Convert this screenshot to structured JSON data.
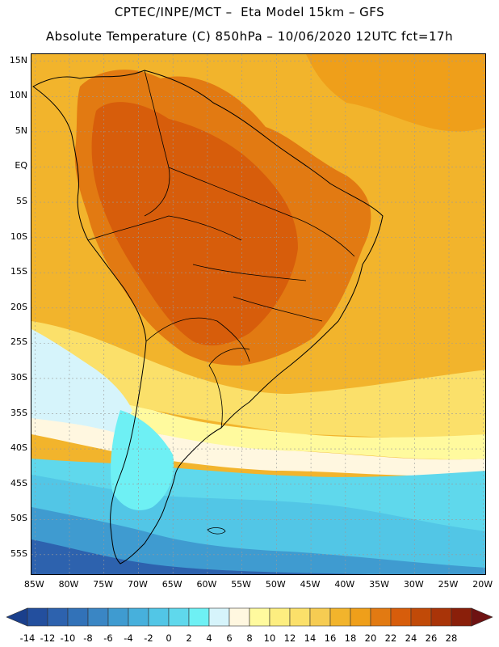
{
  "title_line1": "CPTEC/INPE/MCT –  Eta Model 15km – GFS",
  "title_line2": "Absolute Temperature (C) 850hPa – 10/06/2020 12UTC fct=17h",
  "map": {
    "lon_range": [
      -85.5,
      -19.5
    ],
    "lat_range": [
      -58,
      16
    ],
    "lat_labels": [
      {
        "lat": 15,
        "text": "15N"
      },
      {
        "lat": 10,
        "text": "10N"
      },
      {
        "lat": 5,
        "text": "5N"
      },
      {
        "lat": 0,
        "text": "EQ"
      },
      {
        "lat": -5,
        "text": "5S"
      },
      {
        "lat": -10,
        "text": "10S"
      },
      {
        "lat": -15,
        "text": "15S"
      },
      {
        "lat": -20,
        "text": "20S"
      },
      {
        "lat": -25,
        "text": "25S"
      },
      {
        "lat": -30,
        "text": "30S"
      },
      {
        "lat": -35,
        "text": "35S"
      },
      {
        "lat": -40,
        "text": "40S"
      },
      {
        "lat": -45,
        "text": "45S"
      },
      {
        "lat": -50,
        "text": "50S"
      },
      {
        "lat": -55,
        "text": "55S"
      }
    ],
    "lon_labels": [
      {
        "lon": -85,
        "text": "85W"
      },
      {
        "lon": -80,
        "text": "80W"
      },
      {
        "lon": -75,
        "text": "75W"
      },
      {
        "lon": -70,
        "text": "70W"
      },
      {
        "lon": -65,
        "text": "65W"
      },
      {
        "lon": -60,
        "text": "60W"
      },
      {
        "lon": -55,
        "text": "55W"
      },
      {
        "lon": -50,
        "text": "50W"
      },
      {
        "lon": -45,
        "text": "45W"
      },
      {
        "lon": -40,
        "text": "40W"
      },
      {
        "lon": -35,
        "text": "35W"
      },
      {
        "lon": -30,
        "text": "30W"
      },
      {
        "lon": -25,
        "text": "25W"
      },
      {
        "lon": -20,
        "text": "20W"
      }
    ]
  },
  "colorbar": {
    "levels": [
      "-14",
      "-12",
      "-10",
      "-8",
      "-6",
      "-4",
      "-2",
      "0",
      "2",
      "4",
      "6",
      "8",
      "10",
      "12",
      "14",
      "16",
      "18",
      "20",
      "22",
      "24",
      "26",
      "28"
    ],
    "colors": [
      "#1a3f8c",
      "#234f9e",
      "#2d62ae",
      "#3272b8",
      "#3a86c4",
      "#3f9bd0",
      "#47b0dc",
      "#52c6e6",
      "#5fd8ec",
      "#6ef0f4",
      "#d6f4fb",
      "#fff7e0",
      "#fffa9e",
      "#fdee80",
      "#fbe06a",
      "#f6cc52",
      "#f2b42c",
      "#ef9f1a",
      "#e27a12",
      "#d75d0b",
      "#c14a08",
      "#a93408",
      "#8a1f0a",
      "#6e1212"
    ]
  }
}
